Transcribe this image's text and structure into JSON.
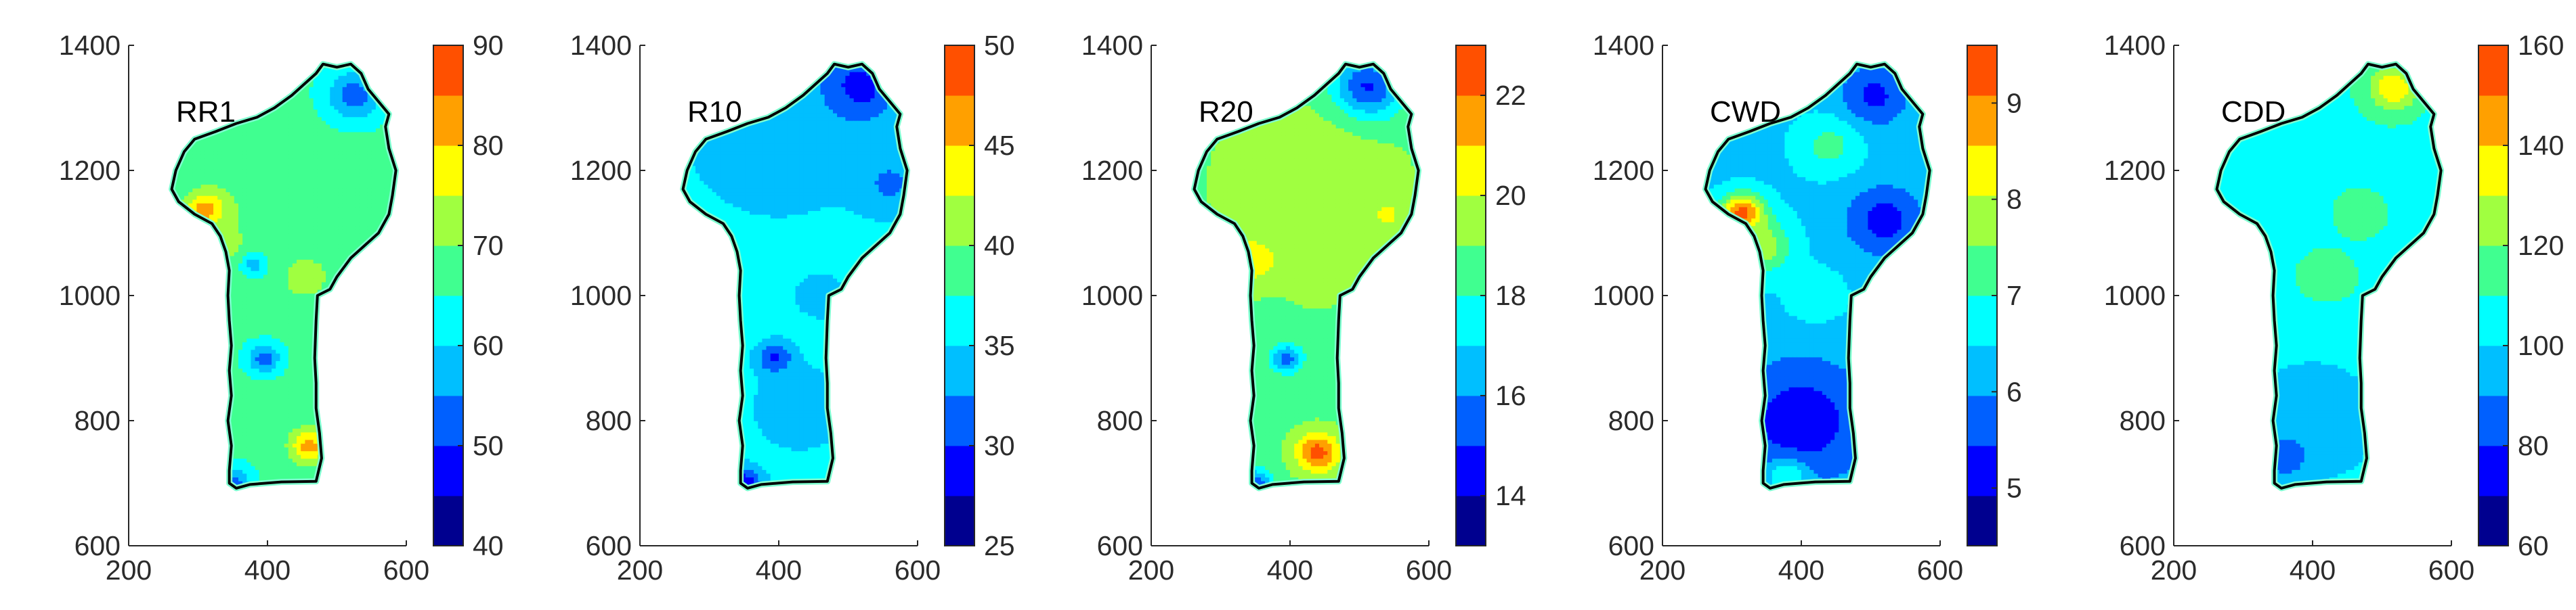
{
  "chart_data": [
    {
      "type": "heatmap",
      "title": "RR1",
      "xlim": [
        200,
        600
      ],
      "ylim": [
        600,
        1400
      ],
      "xticks": [
        200,
        400,
        600
      ],
      "yticks": [
        600,
        800,
        1000,
        1200,
        1400
      ],
      "colorbar": {
        "min": 40,
        "max": 90,
        "ticks": [
          40,
          50,
          60,
          70,
          80,
          90
        ]
      },
      "base_value": 66,
      "hotspots": [
        {
          "x": 315,
          "y": 1135,
          "value": 90,
          "radius": 22
        },
        {
          "x": 460,
          "y": 760,
          "value": 82,
          "radius": 20
        },
        {
          "x": 525,
          "y": 1320,
          "value": 52,
          "radius": 28
        },
        {
          "x": 455,
          "y": 1030,
          "value": 75,
          "radius": 22
        },
        {
          "x": 395,
          "y": 900,
          "value": 52,
          "radius": 16
        },
        {
          "x": 340,
          "y": 1080,
          "value": 72,
          "radius": 30
        },
        {
          "x": 420,
          "y": 1140,
          "value": 70,
          "radius": 70
        },
        {
          "x": 350,
          "y": 700,
          "value": 52,
          "radius": 18
        },
        {
          "x": 380,
          "y": 1050,
          "value": 58,
          "radius": 14
        }
      ]
    },
    {
      "type": "heatmap",
      "title": "R10",
      "xlim": [
        200,
        600
      ],
      "ylim": [
        600,
        1400
      ],
      "xticks": [
        200,
        400,
        600
      ],
      "yticks": [
        600,
        800,
        1000,
        1200,
        1400
      ],
      "colorbar": {
        "min": 25,
        "max": 50,
        "ticks": [
          25,
          30,
          35,
          40,
          45,
          50
        ]
      },
      "base_value": 36,
      "hotspots": [
        {
          "x": 510,
          "y": 1330,
          "value": 27,
          "radius": 40
        },
        {
          "x": 400,
          "y": 1260,
          "value": 33,
          "radius": 90
        },
        {
          "x": 395,
          "y": 900,
          "value": 29,
          "radius": 18
        },
        {
          "x": 350,
          "y": 700,
          "value": 28,
          "radius": 18
        },
        {
          "x": 430,
          "y": 820,
          "value": 33,
          "radius": 45
        },
        {
          "x": 560,
          "y": 1180,
          "value": 32,
          "radius": 35
        },
        {
          "x": 460,
          "y": 1000,
          "value": 34,
          "radius": 30
        }
      ]
    },
    {
      "type": "heatmap",
      "title": "R20",
      "xlim": [
        200,
        600
      ],
      "ylim": [
        600,
        1400
      ],
      "xticks": [
        200,
        400,
        600
      ],
      "yticks": [
        600,
        800,
        1000,
        1200,
        1400
      ],
      "colorbar": {
        "min": 13,
        "max": 23,
        "ticks": [
          14,
          16,
          18,
          20,
          22
        ]
      },
      "base_value": 18.8,
      "hotspots": [
        {
          "x": 440,
          "y": 750,
          "value": 22.5,
          "radius": 22
        },
        {
          "x": 350,
          "y": 1060,
          "value": 21,
          "radius": 28
        },
        {
          "x": 510,
          "y": 1330,
          "value": 14,
          "radius": 35
        },
        {
          "x": 395,
          "y": 900,
          "value": 15.5,
          "radius": 16
        },
        {
          "x": 350,
          "y": 700,
          "value": 15,
          "radius": 16
        },
        {
          "x": 430,
          "y": 1180,
          "value": 19.6,
          "radius": 90
        },
        {
          "x": 540,
          "y": 1130,
          "value": 20.5,
          "radius": 14
        },
        {
          "x": 440,
          "y": 1030,
          "value": 20,
          "radius": 25
        }
      ]
    },
    {
      "type": "heatmap",
      "title": "CWD",
      "xlim": [
        200,
        600
      ],
      "ylim": [
        600,
        1400
      ],
      "xticks": [
        200,
        400,
        600
      ],
      "yticks": [
        600,
        800,
        1000,
        1200,
        1400
      ],
      "colorbar": {
        "min": 4.4,
        "max": 9.6,
        "ticks": [
          5,
          6,
          7,
          8,
          9
        ]
      },
      "base_value": 6.4,
      "hotspots": [
        {
          "x": 315,
          "y": 1130,
          "value": 9.6,
          "radius": 22
        },
        {
          "x": 340,
          "y": 1080,
          "value": 8,
          "radius": 30
        },
        {
          "x": 400,
          "y": 800,
          "value": 5.1,
          "radius": 70
        },
        {
          "x": 520,
          "y": 1120,
          "value": 5.2,
          "radius": 40
        },
        {
          "x": 505,
          "y": 1320,
          "value": 5.3,
          "radius": 35
        },
        {
          "x": 440,
          "y": 1240,
          "value": 7.2,
          "radius": 30
        },
        {
          "x": 420,
          "y": 1000,
          "value": 6.8,
          "radius": 30
        },
        {
          "x": 380,
          "y": 710,
          "value": 7,
          "radius": 20
        }
      ]
    },
    {
      "type": "heatmap",
      "title": "CDD",
      "xlim": [
        200,
        600
      ],
      "ylim": [
        600,
        1400
      ],
      "xticks": [
        200,
        400,
        600
      ],
      "yticks": [
        600,
        800,
        1000,
        1200,
        1400
      ],
      "colorbar": {
        "min": 60,
        "max": 160,
        "ticks": [
          60,
          80,
          100,
          120,
          140,
          160
        ]
      },
      "base_value": 108,
      "hotspots": [
        {
          "x": 515,
          "y": 1330,
          "value": 142,
          "radius": 25
        },
        {
          "x": 400,
          "y": 800,
          "value": 92,
          "radius": 80
        },
        {
          "x": 420,
          "y": 1230,
          "value": 110,
          "radius": 60
        },
        {
          "x": 470,
          "y": 1130,
          "value": 120,
          "radius": 20
        },
        {
          "x": 360,
          "y": 740,
          "value": 85,
          "radius": 25
        },
        {
          "x": 420,
          "y": 1030,
          "value": 112,
          "radius": 40
        }
      ]
    }
  ],
  "colors": {
    "palette": [
      "#00008f",
      "#0000ff",
      "#0060ff",
      "#00bfff",
      "#00ffff",
      "#40ff90",
      "#a0ff40",
      "#ffff00",
      "#ffa000",
      "#ff5000"
    ],
    "axis": "#262626",
    "outline": "#000000"
  },
  "outline_km": [
    [
      355,
      692
    ],
    [
      375,
      698
    ],
    [
      420,
      702
    ],
    [
      470,
      703
    ],
    [
      478,
      740
    ],
    [
      475,
      780
    ],
    [
      470,
      820
    ],
    [
      470,
      860
    ],
    [
      468,
      900
    ],
    [
      470,
      960
    ],
    [
      472,
      1000
    ],
    [
      490,
      1010
    ],
    [
      500,
      1030
    ],
    [
      520,
      1060
    ],
    [
      540,
      1080
    ],
    [
      560,
      1100
    ],
    [
      575,
      1130
    ],
    [
      580,
      1160
    ],
    [
      585,
      1200
    ],
    [
      575,
      1235
    ],
    [
      570,
      1270
    ],
    [
      575,
      1290
    ],
    [
      560,
      1310
    ],
    [
      545,
      1330
    ],
    [
      535,
      1355
    ],
    [
      520,
      1370
    ],
    [
      500,
      1365
    ],
    [
      480,
      1370
    ],
    [
      470,
      1355
    ],
    [
      455,
      1340
    ],
    [
      435,
      1320
    ],
    [
      410,
      1300
    ],
    [
      385,
      1285
    ],
    [
      355,
      1275
    ],
    [
      325,
      1262
    ],
    [
      295,
      1250
    ],
    [
      280,
      1230
    ],
    [
      268,
      1200
    ],
    [
      262,
      1170
    ],
    [
      272,
      1150
    ],
    [
      295,
      1130
    ],
    [
      320,
      1115
    ],
    [
      332,
      1095
    ],
    [
      340,
      1070
    ],
    [
      345,
      1040
    ],
    [
      343,
      1000
    ],
    [
      345,
      960
    ],
    [
      348,
      920
    ],
    [
      345,
      880
    ],
    [
      348,
      840
    ],
    [
      343,
      800
    ],
    [
      348,
      760
    ],
    [
      345,
      720
    ],
    [
      345,
      700
    ]
  ]
}
